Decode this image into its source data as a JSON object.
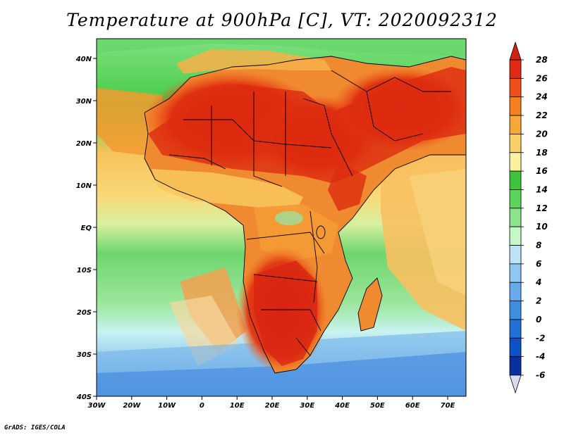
{
  "title": "Temperature at 900hPa [C], VT: 2020092312",
  "credit": "GrADS: IGES/COLA",
  "map": {
    "lat_labels": [
      "40N",
      "30N",
      "20N",
      "10N",
      "EQ",
      "10S",
      "20S",
      "30S",
      "40S"
    ],
    "lon_labels": [
      "30W",
      "20W",
      "10W",
      "0",
      "10E",
      "20E",
      "30E",
      "40E",
      "50E",
      "60E",
      "70E"
    ]
  },
  "colorbar": {
    "labels": [
      "28",
      "26",
      "24",
      "22",
      "20",
      "18",
      "16",
      "14",
      "12",
      "10",
      "8",
      "6",
      "4",
      "2",
      "0",
      "-2",
      "-4",
      "-6"
    ],
    "colors": [
      "#e02a14",
      "#f05018",
      "#f58020",
      "#f8a838",
      "#f9cf6a",
      "#fbf0a0",
      "#3cc43c",
      "#5cd45c",
      "#8be48b",
      "#c6f7c6",
      "#bde3f7",
      "#90c7f0",
      "#66acec",
      "#3d8fe2",
      "#1f71d6",
      "#0c52c4",
      "#0a2fa0"
    ],
    "top_color": "#d42010",
    "bottom_color": "#d8dcf0"
  }
}
